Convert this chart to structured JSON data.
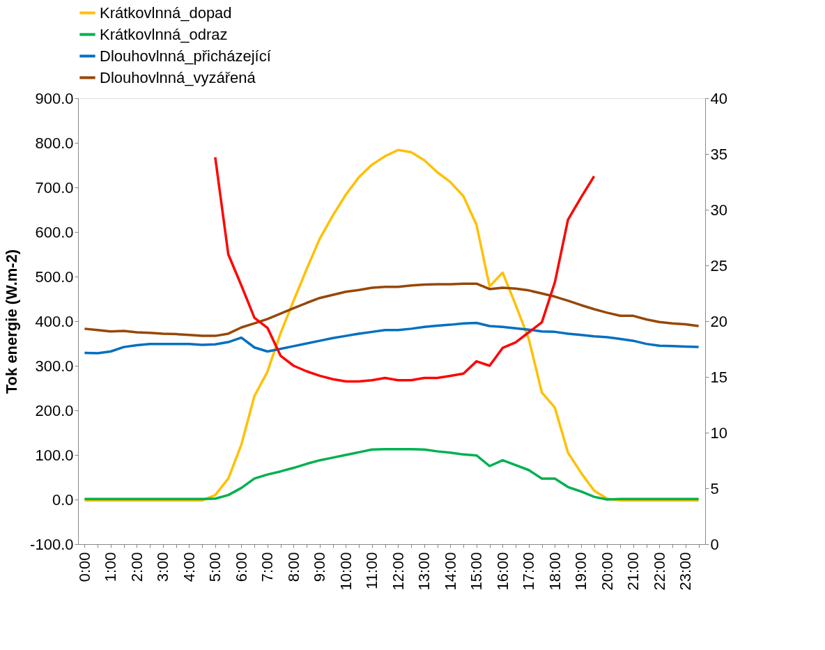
{
  "chart_data": {
    "type": "line",
    "ylabel": "Tok energie (W.m-2)",
    "categories": [
      "0:00",
      null,
      "1:00",
      null,
      "2:00",
      null,
      "3:00",
      null,
      "4:00",
      null,
      "5:00",
      null,
      "6:00",
      null,
      "7:00",
      null,
      "8:00",
      null,
      "9:00",
      null,
      "10:00",
      null,
      "11:00",
      null,
      "12:00",
      null,
      "13:00",
      null,
      "14:00",
      null,
      "15:00",
      null,
      "16:00",
      null,
      "17:00",
      null,
      "18:00",
      null,
      "19:00",
      null,
      "20:00",
      null,
      "21:00",
      null,
      "22:00",
      null,
      "23:00",
      null
    ],
    "series": [
      {
        "name": "Krátkovlnná_dopad",
        "color": "#ffc000",
        "values": [
          -2,
          -2,
          -2,
          -2,
          -2,
          -2,
          -2,
          -2,
          -2,
          -2,
          10,
          47,
          123,
          232,
          287,
          373,
          446,
          517,
          585,
          637,
          684,
          723,
          751,
          770,
          784,
          779,
          761,
          734,
          712,
          680,
          616,
          478,
          509,
          436,
          360,
          240,
          206,
          105,
          60,
          20,
          2,
          -2,
          -2,
          -2,
          -2,
          -2,
          -2,
          -2
        ]
      },
      {
        "name": "Krátkovlnná_odraz",
        "color": "#00b050",
        "values": [
          1,
          1,
          1,
          1,
          1,
          1,
          1,
          1,
          1,
          1,
          2,
          10,
          26,
          47,
          56,
          63,
          71,
          80,
          88,
          94,
          100,
          106,
          112,
          113,
          113,
          113,
          112,
          108,
          105,
          101,
          99,
          75,
          88,
          77,
          66,
          47,
          47,
          28,
          18,
          6,
          0,
          1,
          1,
          1,
          1,
          1,
          1,
          1
        ]
      },
      {
        "name": "Dlouhovlnná_přicházející",
        "color": "#0070c0",
        "values": [
          329,
          328,
          332,
          342,
          346,
          349,
          349,
          349,
          349,
          347,
          348,
          353,
          363,
          341,
          332,
          338,
          344,
          350,
          356,
          362,
          367,
          372,
          376,
          380,
          380,
          383,
          387,
          390,
          392,
          395,
          396,
          389,
          387,
          384,
          381,
          377,
          376,
          372,
          369,
          366,
          364,
          360,
          356,
          349,
          345,
          344,
          343,
          342
        ]
      },
      {
        "name": "Dlouhovlnná_vyzářená",
        "color": "#974706",
        "values": [
          383,
          380,
          377,
          378,
          375,
          374,
          372,
          371,
          369,
          367,
          367,
          372,
          386,
          395,
          405,
          417,
          429,
          441,
          452,
          459,
          466,
          470,
          475,
          477,
          477,
          480,
          482,
          483,
          483,
          484,
          484,
          472,
          475,
          473,
          469,
          462,
          455,
          446,
          436,
          427,
          419,
          412,
          412,
          404,
          398,
          395,
          393,
          389
        ]
      },
      {
        "color": "#ff0000",
        "axis": "y2",
        "values": [
          null,
          null,
          null,
          null,
          null,
          null,
          null,
          null,
          null,
          null,
          34.7,
          26.0,
          23.2,
          20.3,
          19.4,
          16.9,
          16.0,
          15.5,
          15.1,
          14.8,
          14.6,
          14.6,
          14.7,
          14.9,
          14.7,
          14.7,
          14.9,
          14.9,
          15.1,
          15.3,
          16.4,
          16.0,
          17.6,
          18.1,
          19.0,
          19.9,
          23.5,
          29.1,
          31.1,
          33.0,
          null,
          null,
          null,
          null,
          null,
          null,
          null,
          null
        ]
      }
    ],
    "ylim": [
      -100,
      900
    ],
    "yticks": [
      {
        "value": -100,
        "label": "-100.0"
      },
      {
        "value": 0,
        "label": "0.0"
      },
      {
        "value": 100,
        "label": "100.0"
      },
      {
        "value": 200,
        "label": "200.0"
      },
      {
        "value": 300,
        "label": "300.0"
      },
      {
        "value": 400,
        "label": "400.0"
      },
      {
        "value": 500,
        "label": "500.0"
      },
      {
        "value": 600,
        "label": "600.0"
      },
      {
        "value": 700,
        "label": "700.0"
      },
      {
        "value": 800,
        "label": "800.0"
      },
      {
        "value": 900,
        "label": "900.0"
      }
    ],
    "y2lim": [
      0,
      40
    ],
    "y2ticks": [
      0,
      5,
      10,
      15,
      20,
      25,
      30,
      35,
      40
    ],
    "grid": false,
    "legend": "top",
    "line_style": "solid"
  }
}
